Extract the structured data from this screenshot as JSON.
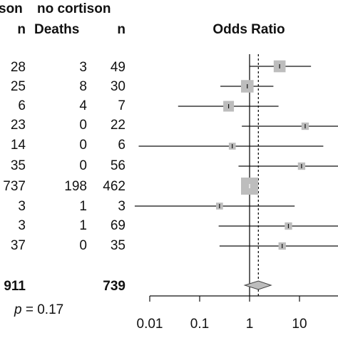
{
  "columns": {
    "cortison_header_fragment": "son",
    "no_cortison_header": "no cortison",
    "n_label": "n",
    "deaths_label": "Deaths"
  },
  "rows": [
    {
      "cortison_n": "28",
      "no_cortison_deaths": "3",
      "no_cortison_n": "49"
    },
    {
      "cortison_n": "25",
      "no_cortison_deaths": "8",
      "no_cortison_n": "30"
    },
    {
      "cortison_n": "6",
      "no_cortison_deaths": "4",
      "no_cortison_n": "7"
    },
    {
      "cortison_n": "23",
      "no_cortison_deaths": "0",
      "no_cortison_n": "22"
    },
    {
      "cortison_n": "14",
      "no_cortison_deaths": "0",
      "no_cortison_n": "6"
    },
    {
      "cortison_n": "35",
      "no_cortison_deaths": "0",
      "no_cortison_n": "56"
    },
    {
      "cortison_n": "737",
      "no_cortison_deaths": "198",
      "no_cortison_n": "462"
    },
    {
      "cortison_n": "3",
      "no_cortison_deaths": "1",
      "no_cortison_n": "3"
    },
    {
      "cortison_n": "3",
      "no_cortison_deaths": "1",
      "no_cortison_n": "69"
    },
    {
      "cortison_n": "37",
      "no_cortison_deaths": "0",
      "no_cortison_n": "35"
    }
  ],
  "totals": {
    "cortison_n": "911",
    "no_cortison_n": "739"
  },
  "p_label": "p",
  "p_value_text": " = 0.17",
  "chart_data": {
    "type": "forest",
    "title": "Odds Ratio",
    "x_scale": "log",
    "xlim": [
      0.005,
      2000
    ],
    "x_ticks": [
      0.01,
      0.1,
      1,
      10
    ],
    "x_tick_labels": [
      "0.01",
      "0.1",
      "1",
      "10"
    ],
    "reference_line": 1,
    "pooled_estimate": 1.5,
    "studies": [
      {
        "or": 4.0,
        "lo": 1.0,
        "hi": 17.0,
        "weight": 0.4
      },
      {
        "or": 0.9,
        "lo": 0.26,
        "hi": 3.0,
        "weight": 0.46
      },
      {
        "or": 0.38,
        "lo": 0.037,
        "hi": 3.8,
        "weight": 0.3
      },
      {
        "or": 13.0,
        "lo": 0.7,
        "hi": 240,
        "weight": 0.1
      },
      {
        "or": 0.45,
        "lo": 0.006,
        "hi": 30,
        "weight": 0.08
      },
      {
        "or": 11.0,
        "lo": 0.6,
        "hi": 200,
        "weight": 0.1
      },
      {
        "or": 1.0,
        "lo": 0.8,
        "hi": 1.3,
        "weight": 1.0
      },
      {
        "or": 0.25,
        "lo": 0.005,
        "hi": 8.0,
        "weight": 0.08
      },
      {
        "or": 6.0,
        "lo": 0.24,
        "hi": 120,
        "weight": 0.1
      },
      {
        "or": 4.5,
        "lo": 0.25,
        "hi": 80,
        "weight": 0.1
      }
    ],
    "pooled": {
      "or": 1.5,
      "lo": 0.8,
      "hi": 2.7
    }
  }
}
